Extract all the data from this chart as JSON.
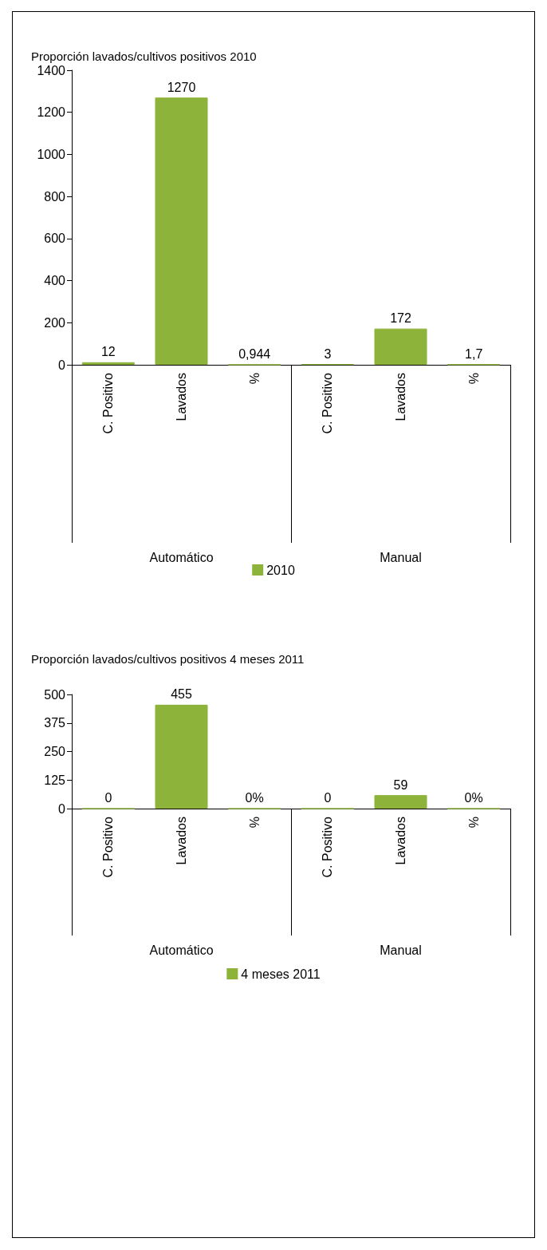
{
  "chart_data": [
    {
      "type": "bar",
      "title": "Proporción lavados/cultivos positivos 2010",
      "categories": [
        "C. Positivo",
        "Lavados",
        "%",
        "C. Positivo",
        "Lavados",
        "%"
      ],
      "annotations": [
        "Automático",
        "Manual"
      ],
      "series": [
        {
          "name": "2010",
          "color": "#8db33a",
          "values": [
            12,
            1270,
            0.944,
            3,
            172,
            1.7
          ],
          "value_labels": [
            "12",
            "1270",
            "0,944",
            "3",
            "172",
            "1,7"
          ]
        }
      ],
      "ylim": [
        0,
        1400
      ],
      "yticks": [
        0,
        200,
        400,
        600,
        800,
        1000,
        1200,
        1400
      ],
      "grid": false,
      "legend": "bottom"
    },
    {
      "type": "bar",
      "title": "Proporción lavados/cultivos positivos 4 meses 2011",
      "categories": [
        "C. Positivo",
        "Lavados",
        "%",
        "C. Positivo",
        "Lavados",
        "%"
      ],
      "annotations": [
        "Automático",
        "Manual"
      ],
      "series": [
        {
          "name": "4 meses 2011",
          "color": "#8db33a",
          "values": [
            0,
            455,
            0,
            0,
            59,
            0
          ],
          "value_labels": [
            "0",
            "455",
            "0%",
            "0",
            "59",
            "0%"
          ]
        }
      ],
      "ylim": [
        0,
        500
      ],
      "yticks": [
        0,
        125,
        250,
        375,
        500
      ],
      "grid": false,
      "legend": "bottom"
    }
  ]
}
